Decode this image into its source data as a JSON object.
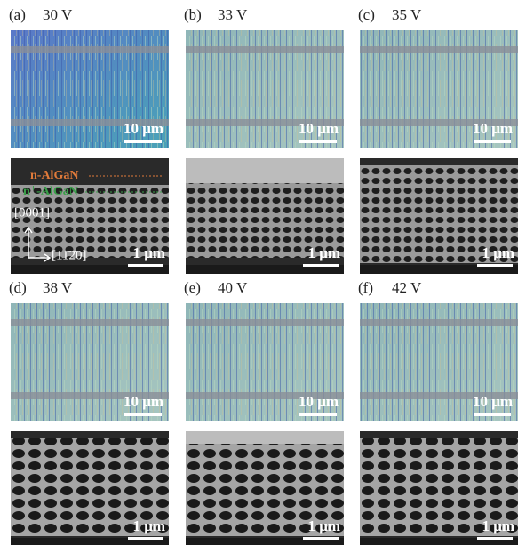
{
  "panels": [
    {
      "label": "(a)",
      "voltage": "30 V",
      "optical_scale": "10 μm",
      "sem_scale": "1 μm"
    },
    {
      "label": "(b)",
      "voltage": "33 V",
      "optical_scale": "10 μm",
      "sem_scale": "1 μm"
    },
    {
      "label": "(c)",
      "voltage": "35 V",
      "optical_scale": "10 μm",
      "sem_scale": "1 μm"
    },
    {
      "label": "(d)",
      "voltage": "38 V",
      "optical_scale": "10 μm",
      "sem_scale": "1 μm"
    },
    {
      "label": "(e)",
      "voltage": "40 V",
      "optical_scale": "10 μm",
      "sem_scale": "1 μm"
    },
    {
      "label": "(f)",
      "voltage": "42 V",
      "optical_scale": "10 μm",
      "sem_scale": "1 μm"
    }
  ],
  "annotations": {
    "n_layer": "n-AlGaN",
    "np_layer": "n⁺-AlGaN",
    "direction_up": "[0001]",
    "direction_right": "[11̄2̄0]"
  }
}
